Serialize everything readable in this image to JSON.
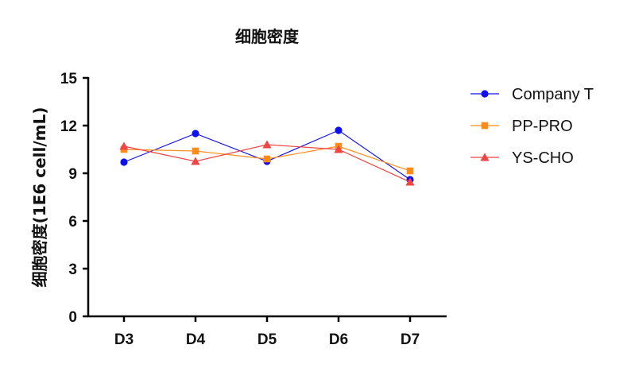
{
  "chart_data": {
    "type": "line",
    "title": "细胞密度",
    "xlabel": "",
    "ylabel": "细胞密度(1E6 cell/mL)",
    "categories": [
      "D3",
      "D4",
      "D5",
      "D6",
      "D7"
    ],
    "ylim": [
      0,
      15
    ],
    "yticks": [
      0,
      3,
      6,
      9,
      12,
      15
    ],
    "legend_position": "right",
    "grid": false,
    "series": [
      {
        "name": "Company T",
        "color": "#1010ee",
        "marker": "circle",
        "values": [
          9.7,
          11.5,
          9.75,
          11.7,
          8.6
        ]
      },
      {
        "name": "PP-PRO",
        "color": "#ff8c1a",
        "marker": "square",
        "values": [
          10.5,
          10.4,
          9.9,
          10.7,
          9.15
        ]
      },
      {
        "name": "YS-CHO",
        "color": "#f04545",
        "marker": "triangle",
        "values": [
          10.7,
          9.75,
          10.8,
          10.5,
          8.45
        ]
      }
    ]
  }
}
